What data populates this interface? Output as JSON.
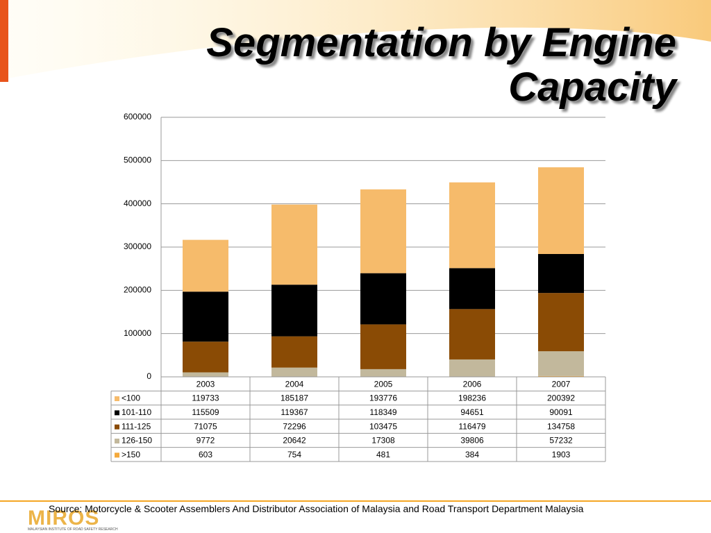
{
  "chart_data": {
    "type": "bar",
    "stacked": true,
    "title": "Segmentation by Engine Capacity",
    "categories": [
      "2003",
      "2004",
      "2005",
      "2006",
      "2007"
    ],
    "series": [
      {
        "name": "<100",
        "color": "#f6bb6b",
        "values": [
          119733,
          185187,
          193776,
          198236,
          200392
        ]
      },
      {
        "name": "101-110",
        "color": "#000000",
        "values": [
          115509,
          119367,
          118349,
          94651,
          90091
        ]
      },
      {
        "name": "111-125",
        "color": "#8a4b05",
        "values": [
          71075,
          72296,
          103475,
          116479,
          134758
        ]
      },
      {
        "name": "126-150",
        "color": "#c2b89c",
        "values": [
          9772,
          20642,
          17308,
          39806,
          57232
        ]
      },
      {
        "name": ">150",
        "color": "#f4a93c",
        "values": [
          603,
          754,
          481,
          384,
          1903
        ]
      }
    ],
    "ylim": [
      0,
      600000
    ],
    "yticks": [
      0,
      100000,
      200000,
      300000,
      400000,
      500000,
      600000
    ],
    "grid": true,
    "source": "Source: Motorcycle & Scooter Assemblers And Distributor Association of Malaysia and Road Transport Department Malaysia",
    "logo": "MIROS",
    "logo_subtitle": "MALAYSIAN INSTITUTE OF ROAD SAFETY RESEARCH"
  }
}
